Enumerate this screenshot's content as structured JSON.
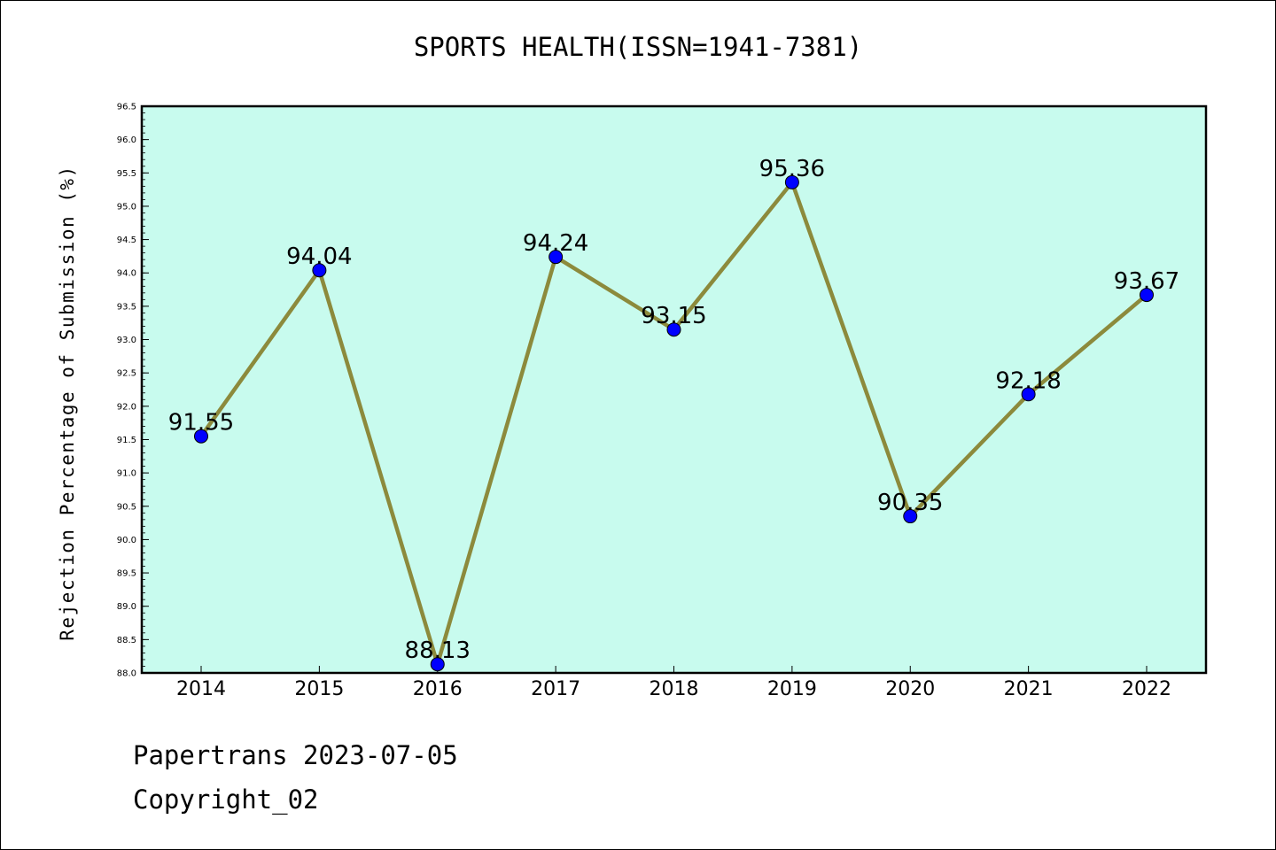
{
  "chart_data": {
    "type": "line",
    "title": "SPORTS HEALTH(ISSN=1941-7381)",
    "xlabel": "",
    "ylabel": "Rejection Percentage of Submission (%)",
    "categories": [
      "2014",
      "2015",
      "2016",
      "2017",
      "2018",
      "2019",
      "2020",
      "2021",
      "2022"
    ],
    "series": [
      {
        "values": [
          91.55,
          94.04,
          88.13,
          94.24,
          93.15,
          95.36,
          90.35,
          92.18,
          93.67
        ],
        "data_labels": [
          "91.55",
          "94.04",
          "88.13",
          "94.24",
          "93.15",
          "95.36",
          "90.35",
          "92.18",
          "93.67"
        ],
        "line_color": "#8c8a3c",
        "marker_color": "#0000ff"
      }
    ],
    "ylim": [
      88.0,
      96.5
    ],
    "yticks": [
      "88.0",
      "88.5",
      "89.0",
      "89.5",
      "90.0",
      "90.5",
      "91.0",
      "91.5",
      "92.0",
      "92.5",
      "93.0",
      "93.5",
      "94.0",
      "94.5",
      "95.0",
      "95.5",
      "96.0",
      "96.5"
    ],
    "grid": false,
    "plot_background": "#c8fbee"
  },
  "footer": {
    "line1": "Papertrans 2023-07-05",
    "line2": "Copyright_02"
  }
}
